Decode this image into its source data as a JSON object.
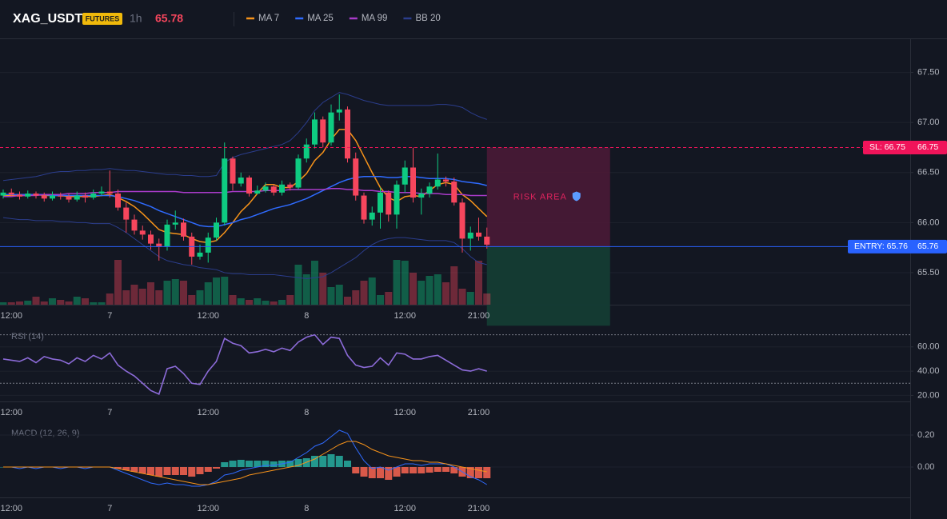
{
  "chart_data": [
    {
      "type": "candlestick",
      "title": "XAG_USDT",
      "badge": "FUTURES",
      "interval": "1h",
      "last_price": 65.78,
      "up_color": "#0ecb81",
      "down_color": "#f6465d",
      "categories": [
        null,
        "12:00",
        null,
        null,
        null,
        null,
        null,
        null,
        null,
        null,
        null,
        null,
        null,
        "7",
        null,
        null,
        null,
        null,
        null,
        null,
        null,
        null,
        null,
        null,
        null,
        "12:00",
        null,
        null,
        null,
        null,
        null,
        null,
        null,
        null,
        null,
        null,
        null,
        "8",
        null,
        null,
        null,
        null,
        null,
        null,
        null,
        null,
        null,
        null,
        null,
        "12:00",
        null,
        null,
        null,
        null,
        null,
        null,
        null,
        null,
        "21:00",
        null
      ],
      "open": [
        66.27,
        66.3,
        66.28,
        66.26,
        66.29,
        66.27,
        66.24,
        66.27,
        66.26,
        66.23,
        66.27,
        66.25,
        66.29,
        66.31,
        66.29,
        66.15,
        66.03,
        65.92,
        65.88,
        65.79,
        65.76,
        65.98,
        66.0,
        65.86,
        65.66,
        65.7,
        65.85,
        66.0,
        66.64,
        66.39,
        66.45,
        66.29,
        66.32,
        66.36,
        66.3,
        66.38,
        66.35,
        66.64,
        66.78,
        67.03,
        66.8,
        67.1,
        67.13,
        66.64,
        66.27,
        66.03,
        66.1,
        66.3,
        66.08,
        66.38,
        66.55,
        66.25,
        66.29,
        66.36,
        66.43,
        66.41,
        66.2,
        65.84,
        65.9,
        65.86
      ],
      "high": [
        66.33,
        66.34,
        66.31,
        66.32,
        66.31,
        66.3,
        66.31,
        66.3,
        66.29,
        66.31,
        66.3,
        66.33,
        66.36,
        66.52,
        66.33,
        66.2,
        66.08,
        65.97,
        65.92,
        65.84,
        66.03,
        66.12,
        66.04,
        65.9,
        65.78,
        65.9,
        66.05,
        66.8,
        66.66,
        66.5,
        66.47,
        66.37,
        66.4,
        66.38,
        66.42,
        66.4,
        66.68,
        66.84,
        67.1,
        67.06,
        67.18,
        67.28,
        67.16,
        66.7,
        66.3,
        66.16,
        66.35,
        66.32,
        66.42,
        66.62,
        66.75,
        66.34,
        66.4,
        66.69,
        66.46,
        66.45,
        66.24,
        65.96,
        66.05,
        65.95
      ],
      "low": [
        66.24,
        66.26,
        66.23,
        66.24,
        66.24,
        66.21,
        66.22,
        66.23,
        66.2,
        66.21,
        66.2,
        66.23,
        66.27,
        66.25,
        66.12,
        65.9,
        65.88,
        65.83,
        65.73,
        65.62,
        65.72,
        65.93,
        65.82,
        65.58,
        65.63,
        65.6,
        65.82,
        65.97,
        66.32,
        66.36,
        66.26,
        66.28,
        66.3,
        66.27,
        66.27,
        66.32,
        66.33,
        66.6,
        66.74,
        66.75,
        66.77,
        67.02,
        66.6,
        66.22,
        65.99,
        65.97,
        65.94,
        66.01,
        65.94,
        66.3,
        66.2,
        66.08,
        66.25,
        66.33,
        66.36,
        66.17,
        65.7,
        65.72,
        65.82,
        65.74
      ],
      "close": [
        66.3,
        66.28,
        66.26,
        66.29,
        66.27,
        66.24,
        66.27,
        66.26,
        66.23,
        66.27,
        66.25,
        66.29,
        66.31,
        66.29,
        66.15,
        66.03,
        65.92,
        65.88,
        65.79,
        65.76,
        65.98,
        66.0,
        65.86,
        65.66,
        65.7,
        65.85,
        66.0,
        66.64,
        66.39,
        66.45,
        66.29,
        66.32,
        66.36,
        66.3,
        66.38,
        66.35,
        66.64,
        66.78,
        67.03,
        66.8,
        67.1,
        67.13,
        66.64,
        66.27,
        66.03,
        66.1,
        66.3,
        66.08,
        66.38,
        66.55,
        66.25,
        66.29,
        66.36,
        66.43,
        66.41,
        66.2,
        65.84,
        65.9,
        65.86,
        65.78
      ],
      "volume": [
        3,
        3,
        4,
        5,
        10,
        4,
        8,
        6,
        4,
        10,
        8,
        3,
        3,
        14,
        56,
        18,
        25,
        20,
        28,
        18,
        30,
        32,
        30,
        12,
        18,
        28,
        34,
        35,
        12,
        8,
        6,
        8,
        5,
        4,
        6,
        12,
        50,
        38,
        55,
        40,
        22,
        25,
        10,
        18,
        30,
        34,
        12,
        16,
        56,
        55,
        40,
        30,
        36,
        38,
        28,
        48,
        20,
        16,
        55,
        14
      ],
      "series": [
        {
          "name": "MA 7",
          "color": "#f7931a",
          "values": [
            66.27,
            66.27,
            66.27,
            66.27,
            66.28,
            66.27,
            66.27,
            66.27,
            66.26,
            66.26,
            66.26,
            66.26,
            66.27,
            66.28,
            66.25,
            66.21,
            66.16,
            66.09,
            66.01,
            65.93,
            65.9,
            65.89,
            65.88,
            65.84,
            65.81,
            65.8,
            65.82,
            65.9,
            66.0,
            66.11,
            66.19,
            66.29,
            66.38,
            66.38,
            66.35,
            66.35,
            66.41,
            66.49,
            66.62,
            66.7,
            66.83,
            66.93,
            66.93,
            66.82,
            66.66,
            66.5,
            66.35,
            66.25,
            66.21,
            66.26,
            66.27,
            66.26,
            66.32,
            66.38,
            66.4,
            66.38,
            66.28,
            66.22,
            66.14,
            66.06
          ]
        },
        {
          "name": "MA 25",
          "color": "#2f6bff",
          "values": [
            66.28,
            66.28,
            66.28,
            66.28,
            66.28,
            66.28,
            66.27,
            66.27,
            66.27,
            66.27,
            66.27,
            66.27,
            66.27,
            66.27,
            66.26,
            66.24,
            66.22,
            66.19,
            66.16,
            66.12,
            66.09,
            66.06,
            66.03,
            66.0,
            65.97,
            65.96,
            65.96,
            65.98,
            66.0,
            66.03,
            66.05,
            66.08,
            66.11,
            66.14,
            66.16,
            66.18,
            66.21,
            66.24,
            66.28,
            66.32,
            66.36,
            66.4,
            66.43,
            66.45,
            66.46,
            66.46,
            66.46,
            66.45,
            66.45,
            66.46,
            66.46,
            66.45,
            66.44,
            66.44,
            66.44,
            66.43,
            66.41,
            66.4,
            66.39,
            66.37
          ]
        },
        {
          "name": "MA 99",
          "color": "#a93bc9",
          "values": [
            66.26,
            66.26,
            66.27,
            66.27,
            66.27,
            66.28,
            66.28,
            66.28,
            66.29,
            66.29,
            66.29,
            66.3,
            66.3,
            66.3,
            66.31,
            66.31,
            66.31,
            66.31,
            66.31,
            66.31,
            66.31,
            66.31,
            66.3,
            66.3,
            66.3,
            66.3,
            66.3,
            66.3,
            66.31,
            66.31,
            66.31,
            66.31,
            66.32,
            66.32,
            66.32,
            66.33,
            66.33,
            66.33,
            66.33,
            66.33,
            66.34,
            66.34,
            66.33,
            66.33,
            66.32,
            66.32,
            66.31,
            66.31,
            66.3,
            66.3,
            66.3,
            66.29,
            66.29,
            66.29,
            66.28,
            66.28,
            66.28,
            66.27,
            66.27,
            66.27
          ]
        },
        {
          "name": "BB 20",
          "color": "#2b3d8c",
          "values": [
            66.42,
            66.43,
            66.44,
            66.45,
            66.46,
            66.48,
            66.5,
            66.51,
            66.51,
            66.52,
            66.52,
            66.53,
            66.53,
            66.54,
            66.53,
            66.52,
            66.52,
            66.51,
            66.5,
            66.49,
            66.48,
            66.48,
            66.47,
            66.47,
            66.46,
            66.46,
            66.47,
            66.6,
            66.65,
            66.68,
            66.7,
            66.72,
            66.74,
            66.76,
            66.78,
            66.82,
            66.9,
            67.0,
            67.12,
            67.2,
            67.25,
            67.3,
            67.28,
            67.25,
            67.22,
            67.2,
            67.18,
            67.17,
            67.17,
            67.17,
            67.17,
            67.17,
            67.17,
            67.18,
            67.18,
            67.17,
            67.15,
            67.1,
            67.06,
            67.03
          ],
          "lower": [
            66.05,
            66.04,
            66.03,
            66.03,
            66.02,
            66.02,
            66.02,
            66.01,
            66.01,
            66.0,
            66.0,
            65.99,
            65.99,
            65.99,
            65.95,
            65.9,
            65.84,
            65.78,
            65.72,
            65.66,
            65.62,
            65.6,
            65.58,
            65.57,
            65.55,
            65.54,
            65.53,
            65.5,
            65.49,
            65.49,
            65.48,
            65.48,
            65.48,
            65.48,
            65.47,
            65.46,
            65.45,
            65.44,
            65.45,
            65.46,
            65.5,
            65.55,
            65.6,
            65.65,
            65.72,
            65.78,
            65.82,
            65.84,
            65.85,
            65.85,
            65.84,
            65.83,
            65.82,
            65.82,
            65.82,
            65.8,
            65.74,
            65.66,
            65.6,
            65.58
          ]
        }
      ],
      "ylim": [
        65.18,
        67.84
      ],
      "yticks": [
        {
          "value": 65.5,
          "label": "65.50"
        },
        {
          "value": 66,
          "label": "66.00"
        },
        {
          "value": 66.5,
          "label": "66.50"
        },
        {
          "value": 67,
          "label": "67.00"
        },
        {
          "value": 67.5,
          "label": "67.50"
        }
      ],
      "grid": true,
      "sl": {
        "value": 66.75,
        "label": "SL: 66.75",
        "axis_label": "66.75",
        "color": "#f0145a"
      },
      "entry": {
        "value": 65.76,
        "label": "ENTRY: 65.76",
        "axis_label": "65.76",
        "color": "#2962ff"
      },
      "tp": 64.97,
      "risk_label": "RISK AREA"
    },
    {
      "type": "line",
      "title": "RSI (14)",
      "categories": [
        null,
        "12:00",
        null,
        null,
        null,
        null,
        null,
        null,
        null,
        null,
        null,
        null,
        null,
        "7",
        null,
        null,
        null,
        null,
        null,
        null,
        null,
        null,
        null,
        null,
        null,
        "12:00",
        null,
        null,
        null,
        null,
        null,
        null,
        null,
        null,
        null,
        null,
        null,
        "8",
        null,
        null,
        null,
        null,
        null,
        null,
        null,
        null,
        null,
        null,
        null,
        "12:00",
        null,
        null,
        null,
        null,
        null,
        null,
        null,
        null,
        "21:00",
        null
      ],
      "series": [
        {
          "color": "#8c6bd8",
          "values": [
            50,
            49,
            48,
            51,
            47,
            52,
            50,
            49,
            46,
            51,
            48,
            53,
            50,
            55,
            45,
            40,
            36,
            30,
            24,
            21,
            42,
            44,
            38,
            30,
            29,
            40,
            48,
            67,
            63,
            61,
            55,
            56,
            58,
            56,
            59,
            57,
            64,
            68,
            70,
            62,
            68,
            67,
            53,
            45,
            43,
            44,
            51,
            45,
            55,
            54,
            50,
            50,
            52,
            53,
            49,
            45,
            41,
            40,
            42,
            40
          ]
        }
      ],
      "levels": [
        70,
        30
      ],
      "ylim": [
        15,
        77
      ],
      "yticks": [
        {
          "value": 20,
          "label": "20.00"
        },
        {
          "value": 40,
          "label": "40.00"
        },
        {
          "value": 60,
          "label": "60.00"
        }
      ]
    },
    {
      "type": "macd",
      "title": "MACD (12, 26, 9)",
      "categories": [
        null,
        "12:00",
        null,
        null,
        null,
        null,
        null,
        null,
        null,
        null,
        null,
        null,
        null,
        "7",
        null,
        null,
        null,
        null,
        null,
        null,
        null,
        null,
        null,
        null,
        null,
        "12:00",
        null,
        null,
        null,
        null,
        null,
        null,
        null,
        null,
        null,
        null,
        null,
        "8",
        null,
        null,
        null,
        null,
        null,
        null,
        null,
        null,
        null,
        null,
        null,
        "12:00",
        null,
        null,
        null,
        null,
        null,
        null,
        null,
        null,
        "21:00",
        null
      ],
      "histogram": {
        "up_color": "#26a69a",
        "down_color": "#f0614f",
        "values": [
          0,
          0,
          -0.002,
          0,
          -0.003,
          0,
          -0.002,
          -0.003,
          0,
          -0.002,
          -0.003,
          0,
          -0.002,
          0,
          -0.01,
          -0.02,
          -0.03,
          -0.04,
          -0.05,
          -0.06,
          -0.05,
          -0.05,
          -0.05,
          -0.06,
          -0.045,
          -0.03,
          -0.01,
          0.03,
          0.04,
          0.045,
          0.04,
          0.04,
          0.04,
          0.035,
          0.04,
          0.04,
          0.05,
          0.055,
          0.07,
          0.07,
          0.08,
          0.07,
          0.04,
          -0.04,
          -0.06,
          -0.07,
          -0.07,
          -0.08,
          -0.06,
          -0.04,
          -0.04,
          -0.04,
          -0.035,
          -0.03,
          -0.03,
          -0.04,
          -0.06,
          -0.07,
          -0.07,
          -0.07
        ]
      },
      "series": [
        {
          "color": "#2f6bff",
          "values": [
            0,
            0,
            -0.01,
            0,
            -0.01,
            0,
            0,
            -0.01,
            0,
            0,
            -0.01,
            0,
            0,
            0,
            -0.02,
            -0.04,
            -0.06,
            -0.08,
            -0.1,
            -0.11,
            -0.1,
            -0.11,
            -0.11,
            -0.12,
            -0.12,
            -0.11,
            -0.09,
            -0.05,
            -0.04,
            -0.02,
            -0.01,
            0,
            0.01,
            0.01,
            0.02,
            0.03,
            0.06,
            0.09,
            0.13,
            0.15,
            0.19,
            0.23,
            0.21,
            0.12,
            0.04,
            -0.01,
            0,
            -0.02,
            0,
            0.02,
            0.02,
            0.01,
            0.02,
            0.02,
            0.02,
            0,
            -0.03,
            -0.06,
            -0.08,
            -0.11
          ]
        },
        {
          "color": "#f7931a",
          "values": [
            0,
            0,
            0,
            0,
            0,
            0,
            0,
            0,
            0,
            0,
            0,
            0,
            0,
            0,
            -0.01,
            -0.02,
            -0.03,
            -0.04,
            -0.05,
            -0.06,
            -0.07,
            -0.08,
            -0.09,
            -0.1,
            -0.11,
            -0.11,
            -0.1,
            -0.09,
            -0.08,
            -0.07,
            -0.05,
            -0.04,
            -0.03,
            -0.02,
            -0.01,
            0,
            0.01,
            0.03,
            0.05,
            0.08,
            0.11,
            0.14,
            0.16,
            0.16,
            0.14,
            0.11,
            0.09,
            0.07,
            0.06,
            0.05,
            0.04,
            0.04,
            0.03,
            0.03,
            0.02,
            0.01,
            0,
            -0.01,
            -0.02,
            -0.03
          ]
        }
      ],
      "ylim": [
        -0.19,
        0.27
      ],
      "yticks": [
        {
          "value": 0,
          "label": "0.00"
        },
        {
          "value": 0.2,
          "label": "0.20"
        }
      ]
    }
  ]
}
